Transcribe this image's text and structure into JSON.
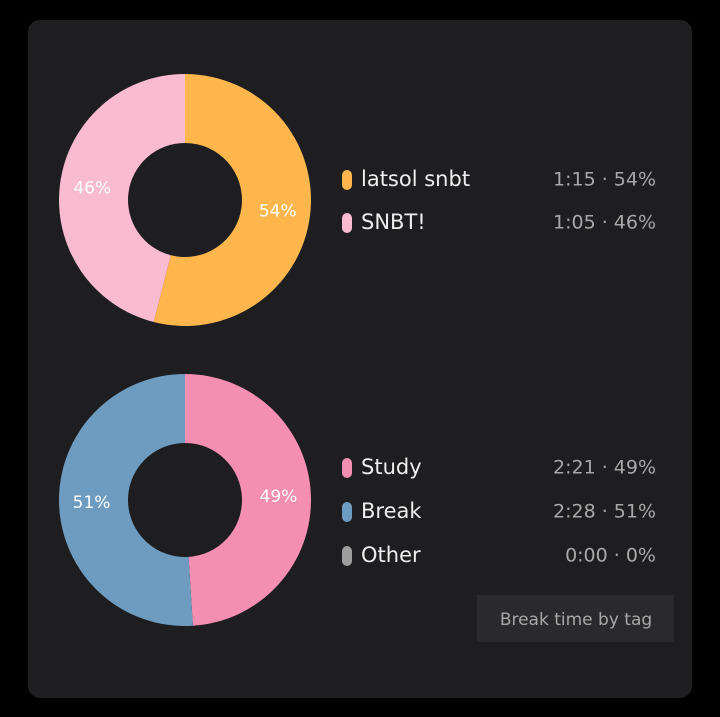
{
  "chart_data": [
    {
      "type": "pie",
      "categories": [
        "latsol snbt",
        "SNBT!"
      ],
      "values": [
        54,
        46
      ],
      "value_labels": [
        "54%",
        "46%"
      ],
      "legend_labels": [
        "1:15 · 54%",
        "1:05 · 46%"
      ],
      "colors": [
        "#ffb74d",
        "#f8bbd0"
      ]
    },
    {
      "type": "pie",
      "categories": [
        "Study",
        "Break",
        "Other"
      ],
      "values": [
        49,
        51,
        0
      ],
      "value_labels": [
        "49%",
        "51%",
        null
      ],
      "legend_labels": [
        "2:21 · 49%",
        "2:28 · 51%",
        "0:00 · 0%"
      ],
      "colors": [
        "#f48fb1",
        "#6e9cc0",
        "#9e9e9e"
      ]
    }
  ],
  "button": {
    "label": "Break time by tag"
  }
}
